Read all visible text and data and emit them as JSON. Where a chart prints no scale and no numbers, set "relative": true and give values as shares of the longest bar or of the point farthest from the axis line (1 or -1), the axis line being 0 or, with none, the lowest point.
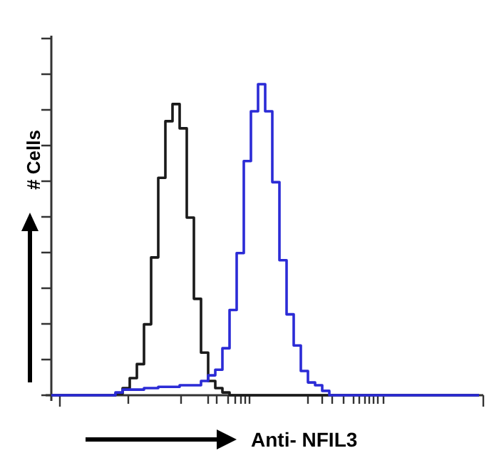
{
  "chart_data": {
    "type": "step",
    "relative": true,
    "xlabel": "Anti- NFIL3",
    "ylabel": "# Cells",
    "categories": [
      null,
      null,
      null,
      null,
      null,
      null,
      null,
      null,
      null,
      null,
      null,
      null,
      null,
      null,
      null,
      null,
      null,
      null,
      null,
      null,
      null,
      null,
      null,
      null,
      null,
      null,
      null,
      null,
      null,
      null,
      null,
      null,
      null,
      null,
      null,
      null,
      null,
      null,
      null,
      null,
      null,
      null,
      null,
      null,
      null,
      null,
      null,
      null,
      null,
      null,
      null,
      null,
      null,
      null,
      null,
      null,
      null,
      null,
      null,
      null,
      null
    ],
    "series": [
      {
        "color": "#1a1a1a",
        "values": [
          0,
          0,
          0,
          0,
          0,
          0,
          0,
          0,
          0,
          0.005,
          0.023,
          0.055,
          0.1,
          0.228,
          0.443,
          0.699,
          0.881,
          0.936,
          0.858,
          0.571,
          0.31,
          0.137,
          0.046,
          0.023,
          0.009,
          0,
          0,
          0,
          0,
          0,
          0,
          0,
          0,
          0,
          0,
          0,
          0,
          0,
          0,
          0,
          0,
          0,
          0,
          0,
          0,
          0,
          0,
          0,
          0,
          0,
          0,
          0,
          0,
          0,
          0,
          0,
          0,
          0,
          0,
          0,
          0
        ]
      },
      {
        "color": "#2b2bd6",
        "values": [
          0,
          0,
          0,
          0,
          0,
          0,
          0,
          0,
          0,
          0.009,
          0.018,
          0.018,
          0.018,
          0.023,
          0.023,
          0.027,
          0.027,
          0.027,
          0.032,
          0.032,
          0.032,
          0.046,
          0.064,
          0.082,
          0.151,
          0.274,
          0.457,
          0.753,
          0.913,
          1,
          0.913,
          0.685,
          0.434,
          0.26,
          0.16,
          0.078,
          0.041,
          0.032,
          0.014,
          0,
          0,
          0,
          0,
          0,
          0,
          0,
          0,
          0,
          0,
          0,
          0,
          0,
          0,
          0,
          0,
          0,
          0,
          0,
          0,
          0,
          0
        ]
      }
    ]
  }
}
